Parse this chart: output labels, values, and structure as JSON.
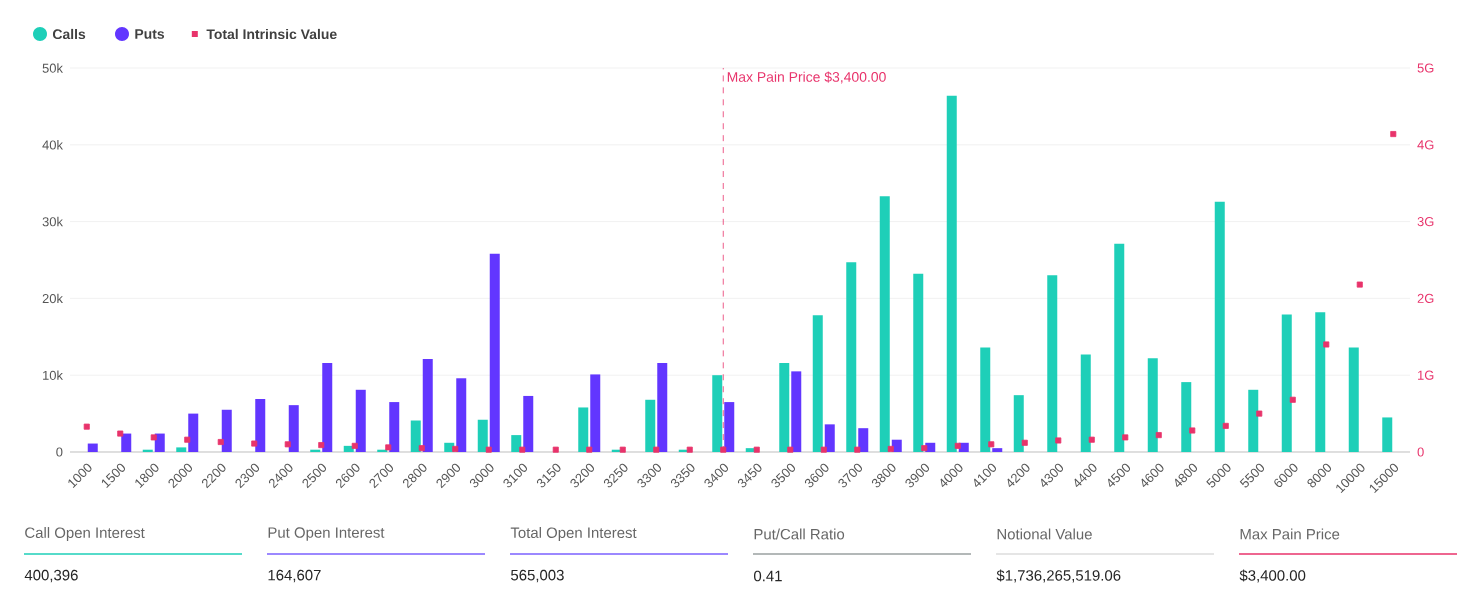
{
  "chart_data": {
    "type": "bar",
    "categories": [
      "1000",
      "1500",
      "1800",
      "2000",
      "2200",
      "2300",
      "2400",
      "2500",
      "2600",
      "2700",
      "2800",
      "2900",
      "3000",
      "3100",
      "3150",
      "3200",
      "3250",
      "3300",
      "3350",
      "3400",
      "3450",
      "3500",
      "3600",
      "3700",
      "3800",
      "3900",
      "4000",
      "4100",
      "4200",
      "4300",
      "4400",
      "4500",
      "4600",
      "4800",
      "5000",
      "5500",
      "6000",
      "8000",
      "10000",
      "15000"
    ],
    "series": [
      {
        "name": "Calls",
        "color": "#1ecfb8",
        "values": [
          null,
          null,
          300,
          600,
          null,
          null,
          null,
          300,
          800,
          300,
          4100,
          1200,
          4200,
          2200,
          null,
          5800,
          300,
          6800,
          300,
          10000,
          500,
          11600,
          17800,
          24700,
          33300,
          23200,
          46400,
          13600,
          7400,
          23000,
          12700,
          27100,
          12200,
          9100,
          32600,
          8100,
          17900,
          18200,
          13600,
          4500
        ]
      },
      {
        "name": "Puts",
        "color": "#6236ff",
        "values": [
          1100,
          2400,
          2400,
          5000,
          5500,
          6900,
          6100,
          11600,
          8100,
          6500,
          12100,
          9600,
          25800,
          7300,
          null,
          10100,
          null,
          11600,
          null,
          6500,
          null,
          10500,
          3600,
          3100,
          1600,
          1200,
          1200,
          500,
          null,
          null,
          null,
          null,
          null,
          null,
          null,
          null,
          null,
          null,
          null,
          null
        ]
      },
      {
        "name": "Total Intrinsic Value",
        "type": "scatter",
        "axis": "y2",
        "marker": "square",
        "color": "#e8336b",
        "values": [
          0.33,
          0.24,
          0.19,
          0.16,
          0.13,
          0.11,
          0.1,
          0.09,
          0.08,
          0.06,
          0.05,
          0.04,
          0.03,
          0.03,
          0.03,
          0.03,
          0.03,
          0.03,
          0.03,
          0.03,
          0.03,
          0.03,
          0.03,
          0.03,
          0.04,
          0.05,
          0.08,
          0.1,
          0.12,
          0.15,
          0.16,
          0.19,
          0.22,
          0.28,
          0.34,
          0.5,
          0.68,
          1.4,
          2.18,
          4.14
        ]
      }
    ],
    "ylim": [
      0,
      50000
    ],
    "yticks": [
      {
        "value": 0,
        "label": "0"
      },
      {
        "value": 10000,
        "label": "10k"
      },
      {
        "value": 20000,
        "label": "20k"
      },
      {
        "value": 30000,
        "label": "30k"
      },
      {
        "value": 40000,
        "label": "40k"
      },
      {
        "value": 50000,
        "label": "50k"
      }
    ],
    "y2lim": [
      0,
      5
    ],
    "y2ticks": [
      0,
      {
        "value": 1,
        "label": "1G"
      },
      {
        "value": 2,
        "label": "2G"
      },
      {
        "value": 3,
        "label": "3G"
      },
      {
        "value": 4,
        "label": "4G"
      },
      {
        "value": 5,
        "label": "5G"
      }
    ],
    "grid": "y",
    "legend": "top left",
    "ref_lines": [
      {
        "axis": "x",
        "value": "3400",
        "label": "Max Pain Price $3,400.00",
        "color": "#e8336b",
        "line_style": "dashed"
      }
    ],
    "annotations": [
      "Call Open Interest",
      "400,396",
      "Put Open Interest",
      "164,607",
      "Total Open Interest",
      "565,003",
      "Put/Call Ratio",
      "0.41",
      "Notional Value",
      "$1,736,265,519.06",
      "Max Pain Price",
      "$3,400.00"
    ]
  }
}
